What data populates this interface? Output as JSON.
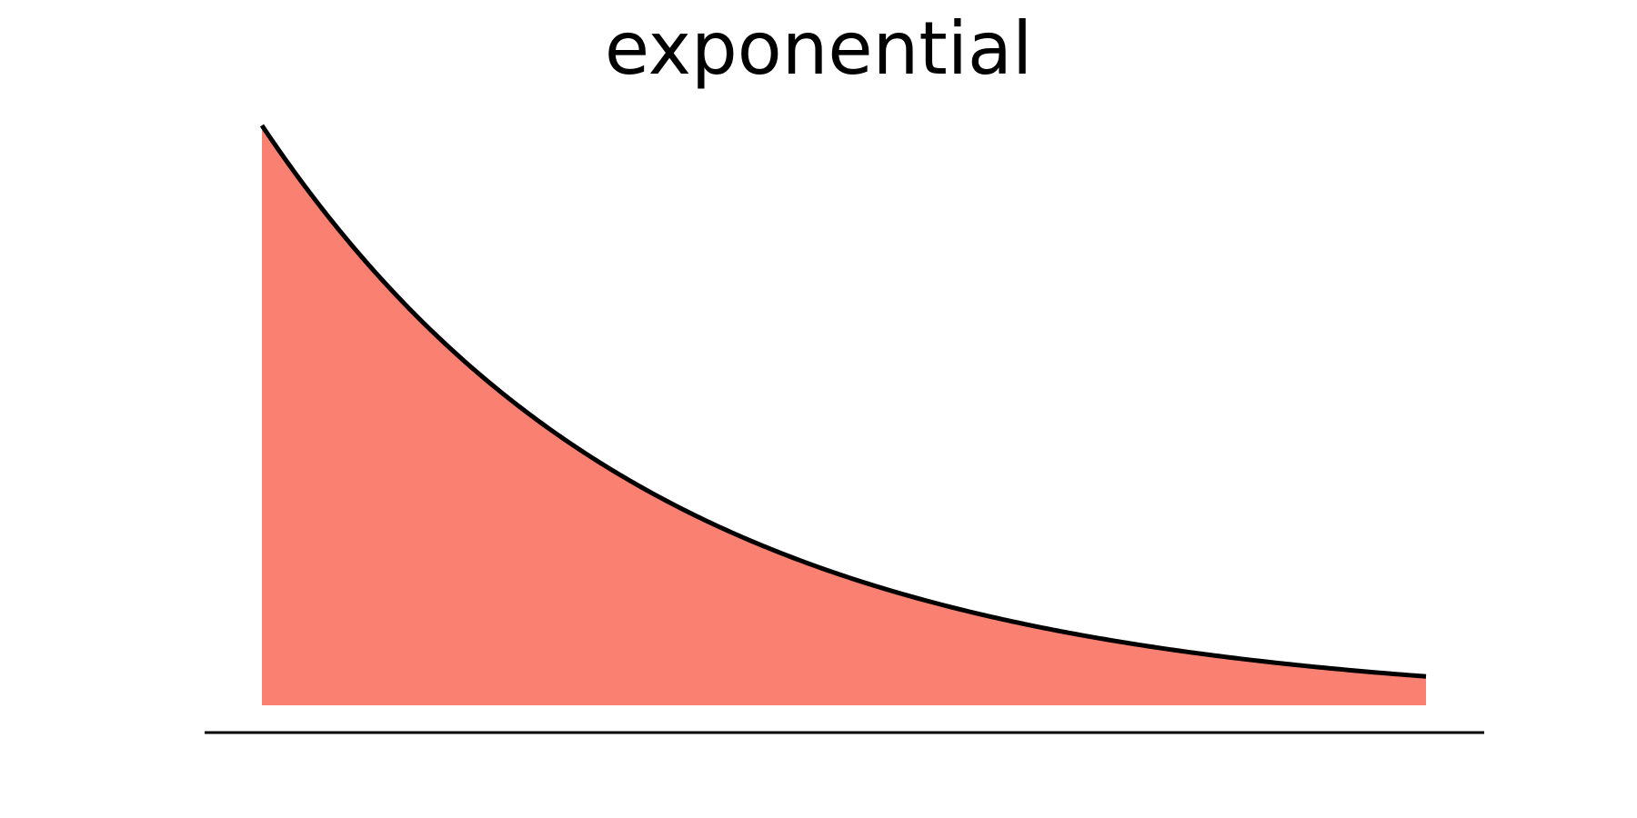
{
  "chart_data": {
    "type": "area",
    "title": "exponential",
    "xlabel": "",
    "ylabel": "",
    "grid": false,
    "legend": "none",
    "function": "exp(-x)",
    "x_range": [
      0,
      3
    ],
    "ylim": [
      0,
      1
    ],
    "fill_color": "#fa8072",
    "line_color": "#000000",
    "series": [
      {
        "x": [
          0,
          0.25,
          0.5,
          0.75,
          1,
          1.25,
          1.5,
          1.75,
          2,
          2.25,
          2.5,
          2.75,
          3
        ],
        "values": [
          1,
          0.7788,
          0.6065,
          0.4724,
          0.3679,
          0.2865,
          0.2231,
          0.1738,
          0.1353,
          0.1054,
          0.0821,
          0.0639,
          0.0498
        ]
      }
    ]
  }
}
